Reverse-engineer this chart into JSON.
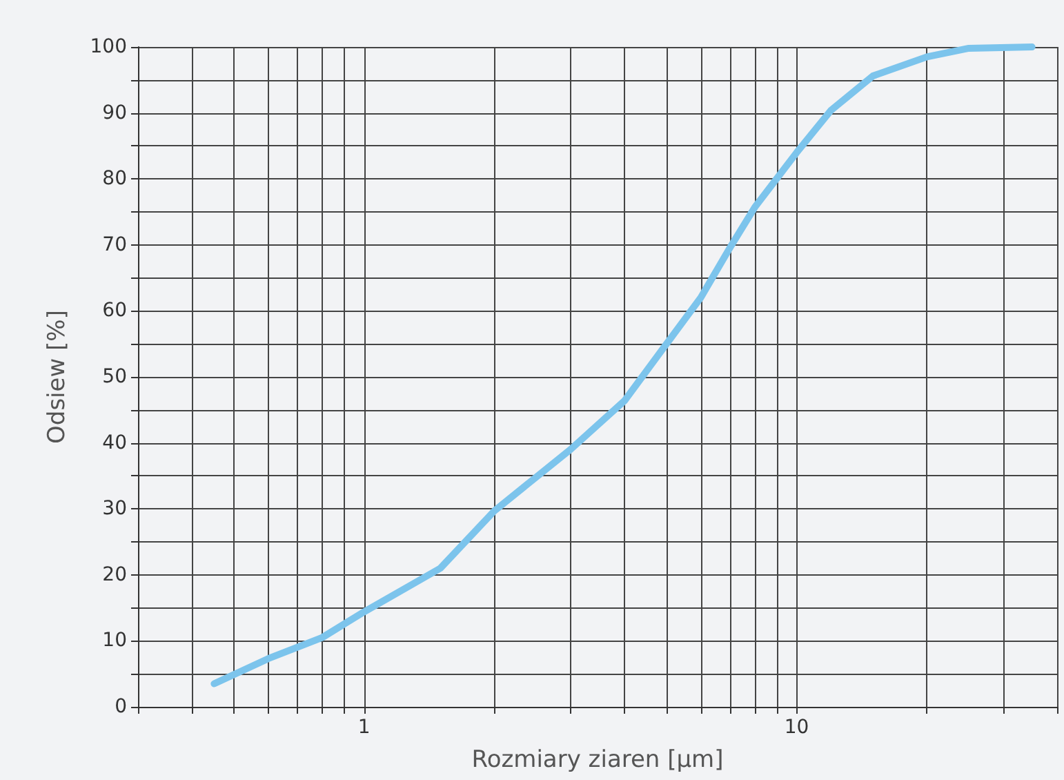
{
  "chart_data": {
    "type": "line",
    "xlabel": "Rozmiary ziaren [µm]",
    "ylabel": "Odsiew [%]",
    "log": "x",
    "x": [
      0.45,
      0.6,
      0.8,
      1,
      1.5,
      2,
      3,
      4,
      5,
      6,
      7,
      8,
      10,
      12,
      15,
      20,
      25,
      35
    ],
    "series": [
      {
        "color": "#7cc4ec",
        "values": [
          3.5,
          7.3,
          10.5,
          14.4,
          21,
          29.7,
          39,
          46.4,
          55,
          62,
          69.5,
          75.7,
          84,
          90.4,
          95.6,
          98.5,
          99.8,
          100
        ]
      }
    ],
    "xlim": [
      0.3,
      40
    ],
    "xticks": [
      {
        "value": 0.3,
        "label": null
      },
      {
        "value": 0.4,
        "label": null
      },
      {
        "value": 0.5,
        "label": null
      },
      {
        "value": 0.6,
        "label": null
      },
      {
        "value": 0.7,
        "label": null
      },
      {
        "value": 0.8,
        "label": null
      },
      {
        "value": 0.9,
        "label": null
      },
      1,
      {
        "value": 2,
        "label": null
      },
      {
        "value": 3,
        "label": null
      },
      {
        "value": 4,
        "label": null
      },
      {
        "value": 5,
        "label": null
      },
      {
        "value": 6,
        "label": null
      },
      {
        "value": 7,
        "label": null
      },
      {
        "value": 8,
        "label": null
      },
      {
        "value": 9,
        "label": null
      },
      10,
      {
        "value": 20,
        "label": null
      },
      {
        "value": 30,
        "label": null
      },
      {
        "value": 40,
        "label": null
      }
    ],
    "ylim": [
      0,
      100
    ],
    "yticks": [
      0,
      {
        "value": 5,
        "label": null
      },
      10,
      {
        "value": 15,
        "label": null
      },
      20,
      {
        "value": 25,
        "label": null
      },
      30,
      {
        "value": 35,
        "label": null
      },
      40,
      {
        "value": 45,
        "label": null
      },
      50,
      {
        "value": 55,
        "label": null
      },
      60,
      {
        "value": 65,
        "label": null
      },
      70,
      {
        "value": 75,
        "label": null
      },
      80,
      {
        "value": 85,
        "label": null
      },
      90,
      {
        "value": 95,
        "label": null
      },
      100
    ],
    "grid": true,
    "marker": "none",
    "line_style": "solid"
  }
}
